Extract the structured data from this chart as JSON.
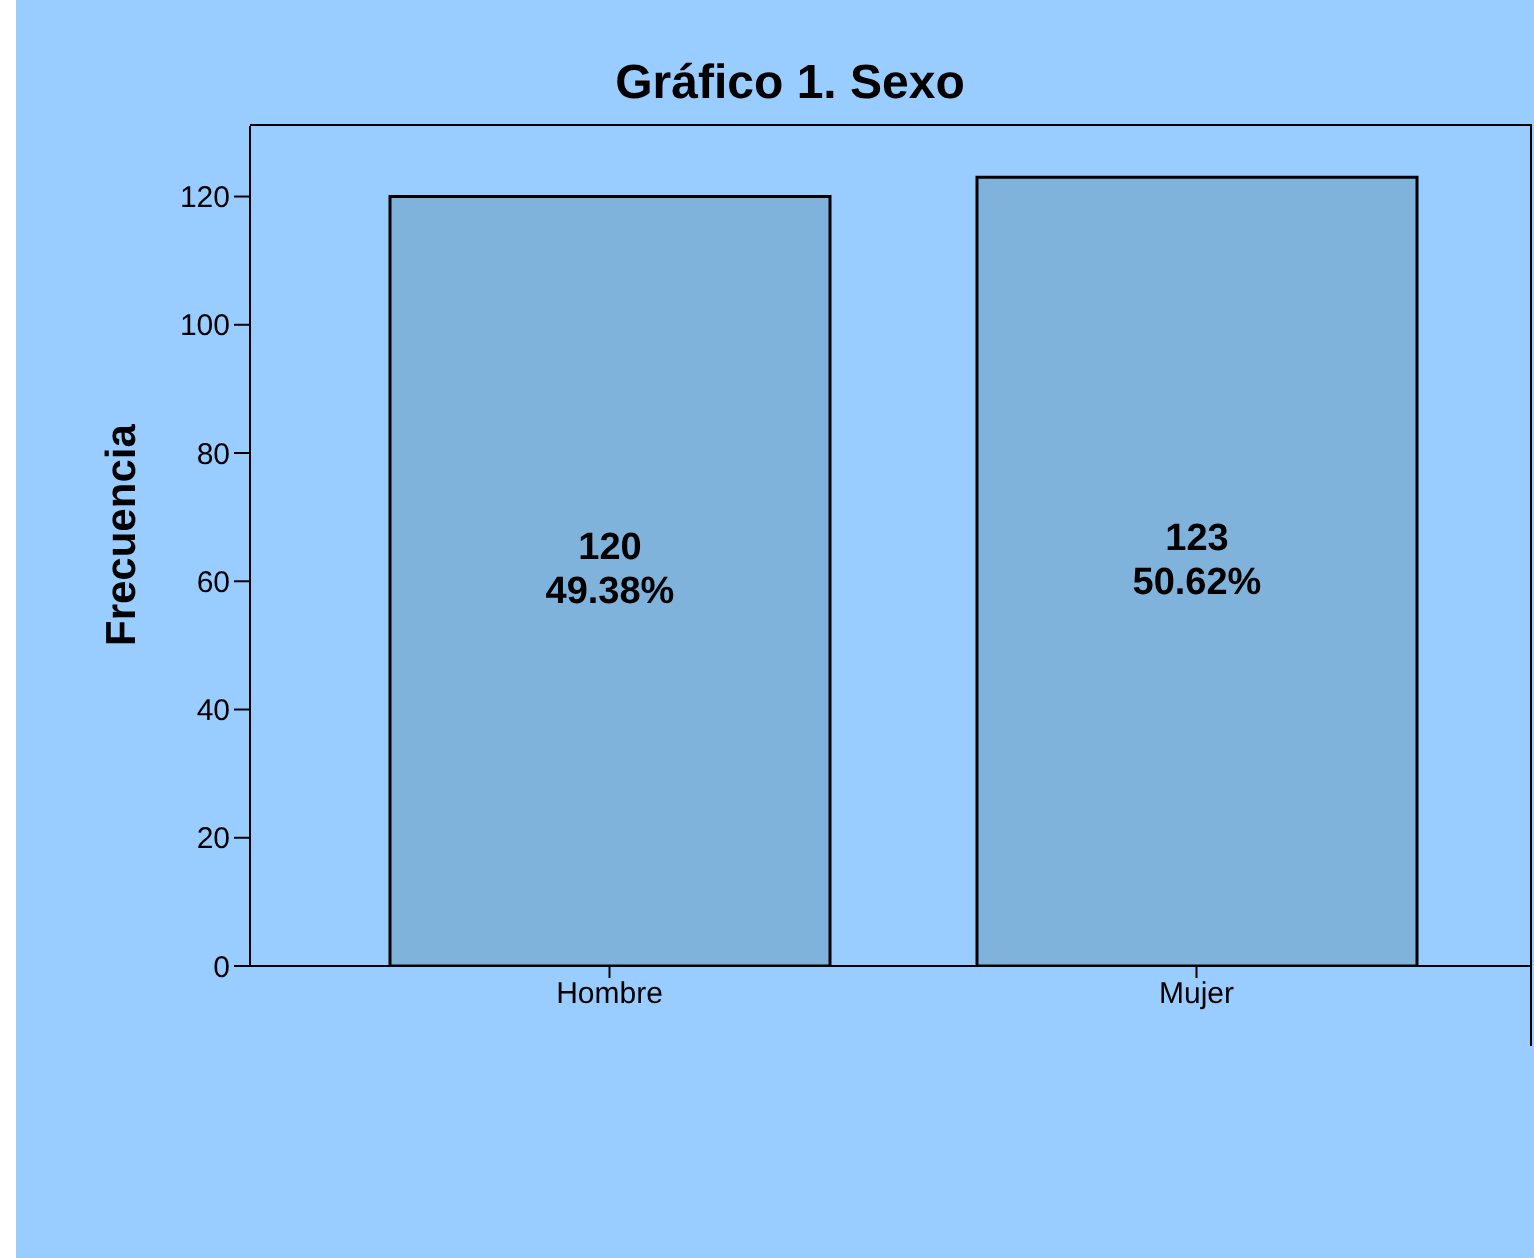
{
  "chart_data": {
    "type": "bar",
    "title": "Gráfico 1. Sexo",
    "ylabel": "Frecuencia",
    "categories": [
      "Hombre",
      "Mujer"
    ],
    "values": [
      120,
      123
    ],
    "value_labels": [
      "120\n49.38%",
      "123\n50.62%"
    ],
    "color": "#80b3db",
    "ylim": [
      0,
      131
    ],
    "yticks": [
      0,
      20,
      40,
      60,
      80,
      100,
      120
    ],
    "grid": false
  }
}
